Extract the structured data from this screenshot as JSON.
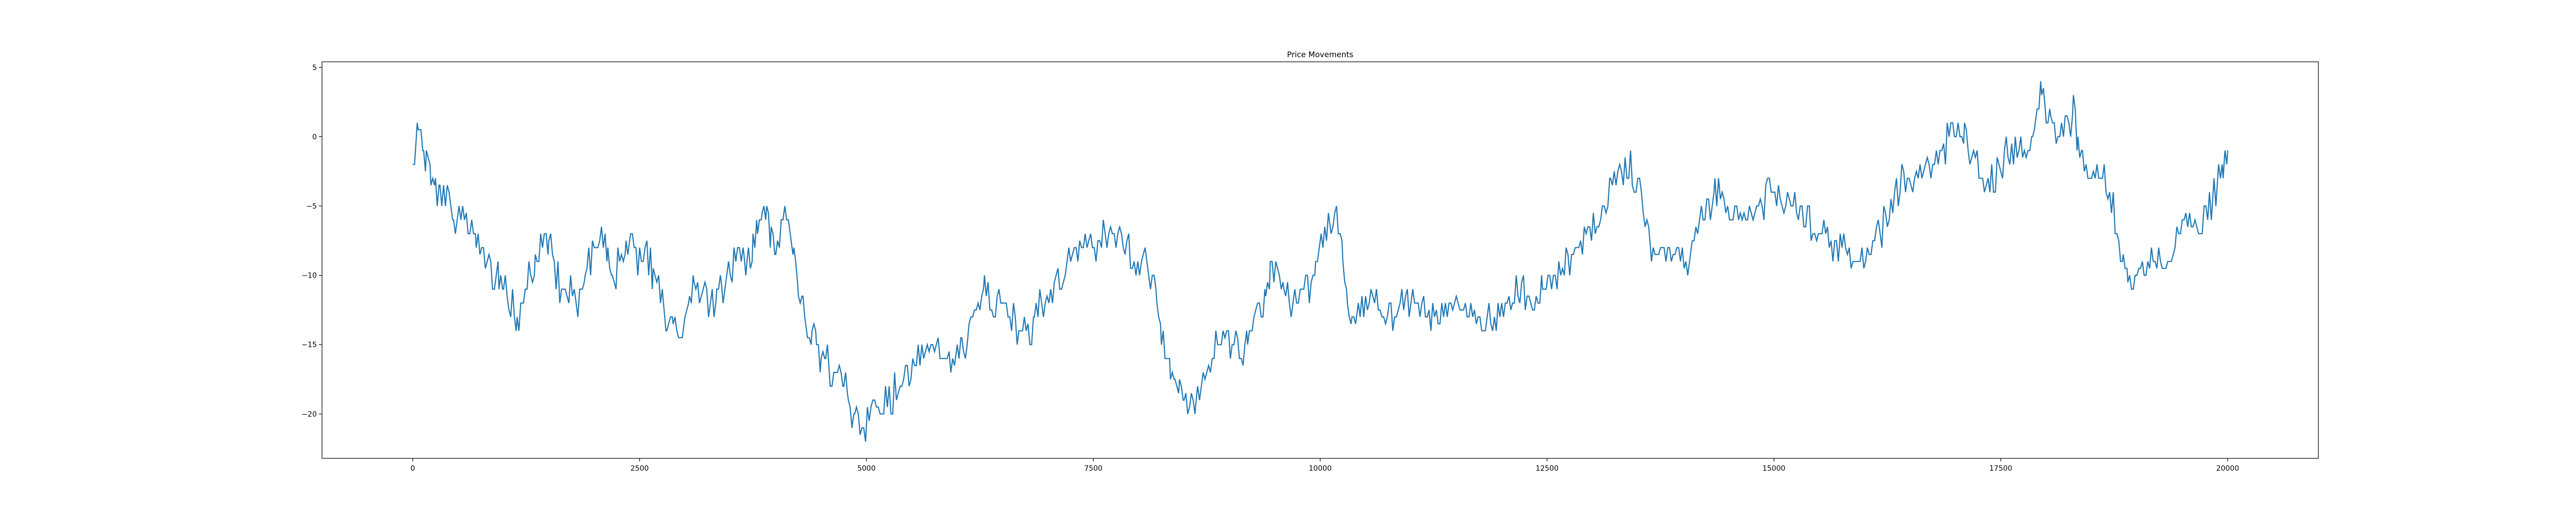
{
  "chart_data": {
    "type": "line",
    "title": "Price Movements",
    "xlabel": "",
    "ylabel": "",
    "xlim": [
      -1000,
      21000
    ],
    "ylim": [
      -23.2,
      5.4
    ],
    "x_ticks": [
      0,
      2500,
      5000,
      7500,
      10000,
      12500,
      15000,
      17500,
      20000
    ],
    "y_ticks": [
      5,
      0,
      -5,
      -10,
      -15,
      -20
    ],
    "grid": false,
    "series_color": "#1f77b4",
    "x_step": 20,
    "points": [
      [
        0,
        -2
      ],
      [
        30,
        0
      ],
      [
        60,
        1
      ],
      [
        90,
        0
      ],
      [
        120,
        -1
      ],
      [
        150,
        -2
      ],
      [
        200,
        -3
      ],
      [
        250,
        -4
      ],
      [
        300,
        -4
      ],
      [
        400,
        -4
      ],
      [
        450,
        -6
      ],
      [
        550,
        -6
      ],
      [
        650,
        -6
      ],
      [
        700,
        -7
      ],
      [
        760,
        -8
      ],
      [
        820,
        -9
      ],
      [
        900,
        -10
      ],
      [
        950,
        -10
      ],
      [
        1000,
        -11
      ],
      [
        1080,
        -12
      ],
      [
        1150,
        -13
      ],
      [
        1200,
        -12
      ],
      [
        1300,
        -10
      ],
      [
        1350,
        -9
      ],
      [
        1450,
        -8
      ],
      [
        1500,
        -8
      ],
      [
        1560,
        -9
      ],
      [
        1620,
        -11
      ],
      [
        1700,
        -11
      ],
      [
        1800,
        -12
      ],
      [
        1850,
        -11
      ],
      [
        1900,
        -10
      ],
      [
        2000,
        -8
      ],
      [
        2100,
        -7
      ],
      [
        2150,
        -8
      ],
      [
        2200,
        -10
      ],
      [
        2300,
        -9
      ],
      [
        2350,
        -8
      ],
      [
        2400,
        -8
      ],
      [
        2500,
        -9
      ],
      [
        2580,
        -8
      ],
      [
        2650,
        -10
      ],
      [
        2750,
        -11
      ],
      [
        2800,
        -13
      ],
      [
        2870,
        -14
      ],
      [
        2950,
        -14
      ],
      [
        3000,
        -13
      ],
      [
        3050,
        -12
      ],
      [
        3100,
        -11
      ],
      [
        3200,
        -11
      ],
      [
        3300,
        -12
      ],
      [
        3350,
        -12
      ],
      [
        3400,
        -11
      ],
      [
        3500,
        -10
      ],
      [
        3580,
        -9
      ],
      [
        3650,
        -9
      ],
      [
        3700,
        -9
      ],
      [
        3750,
        -8
      ],
      [
        3800,
        -6
      ],
      [
        3850,
        -5
      ],
      [
        3900,
        -6
      ],
      [
        3950,
        -7
      ],
      [
        4000,
        -8
      ],
      [
        4060,
        -7
      ],
      [
        4100,
        -6
      ],
      [
        4150,
        -7
      ],
      [
        4200,
        -9
      ],
      [
        4250,
        -11
      ],
      [
        4300,
        -12
      ],
      [
        4350,
        -14
      ],
      [
        4400,
        -14
      ],
      [
        4450,
        -15
      ],
      [
        4500,
        -16
      ],
      [
        4550,
        -16
      ],
      [
        4600,
        -17
      ],
      [
        4700,
        -17
      ],
      [
        4750,
        -18
      ],
      [
        4800,
        -19
      ],
      [
        4870,
        -20
      ],
      [
        4950,
        -21
      ],
      [
        5050,
        -20
      ],
      [
        5150,
        -20
      ],
      [
        5250,
        -19
      ],
      [
        5350,
        -18
      ],
      [
        5450,
        -17
      ],
      [
        5550,
        -16
      ],
      [
        5650,
        -15
      ],
      [
        5750,
        -15
      ],
      [
        5850,
        -16
      ],
      [
        6000,
        -16
      ],
      [
        6050,
        -15
      ],
      [
        6150,
        -14
      ],
      [
        6250,
        -12
      ],
      [
        6300,
        -11
      ],
      [
        6400,
        -12
      ],
      [
        6500,
        -12
      ],
      [
        6600,
        -13
      ],
      [
        6700,
        -14
      ],
      [
        6800,
        -14
      ],
      [
        6850,
        -13
      ],
      [
        6950,
        -12
      ],
      [
        7050,
        -11
      ],
      [
        7150,
        -10
      ],
      [
        7250,
        -9
      ],
      [
        7350,
        -8
      ],
      [
        7450,
        -8
      ],
      [
        7550,
        -8
      ],
      [
        7650,
        -7
      ],
      [
        7750,
        -7
      ],
      [
        7850,
        -8
      ],
      [
        7950,
        -9
      ],
      [
        8050,
        -9
      ],
      [
        8150,
        -10
      ],
      [
        8200,
        -12
      ],
      [
        8250,
        -14
      ],
      [
        8300,
        -16
      ],
      [
        8350,
        -17
      ],
      [
        8400,
        -17
      ],
      [
        8450,
        -18
      ],
      [
        8500,
        -19
      ],
      [
        8600,
        -19
      ],
      [
        8650,
        -18
      ],
      [
        8750,
        -17
      ],
      [
        8850,
        -15
      ],
      [
        8950,
        -14
      ],
      [
        9050,
        -15
      ],
      [
        9150,
        -16
      ],
      [
        9200,
        -14
      ],
      [
        9250,
        -13
      ],
      [
        9350,
        -12
      ],
      [
        9400,
        -11
      ],
      [
        9450,
        -10
      ],
      [
        9550,
        -10
      ],
      [
        9600,
        -11
      ],
      [
        9700,
        -12
      ],
      [
        9800,
        -11
      ],
      [
        9900,
        -11
      ],
      [
        9950,
        -9
      ],
      [
        10050,
        -7
      ],
      [
        10100,
        -6
      ],
      [
        10200,
        -6
      ],
      [
        10250,
        -9
      ],
      [
        10300,
        -12
      ],
      [
        10350,
        -13
      ],
      [
        10400,
        -13
      ],
      [
        10500,
        -12
      ],
      [
        10600,
        -12
      ],
      [
        10700,
        -13
      ],
      [
        10800,
        -13
      ],
      [
        10900,
        -12
      ],
      [
        11000,
        -12
      ],
      [
        11100,
        -12
      ],
      [
        11200,
        -13
      ],
      [
        11300,
        -13
      ],
      [
        11400,
        -12
      ],
      [
        11500,
        -12
      ],
      [
        11600,
        -13
      ],
      [
        11700,
        -13
      ],
      [
        11800,
        -14
      ],
      [
        11900,
        -13
      ],
      [
        12000,
        -13
      ],
      [
        12100,
        -12
      ],
      [
        12200,
        -11
      ],
      [
        12300,
        -12
      ],
      [
        12400,
        -12
      ],
      [
        12450,
        -11
      ],
      [
        12550,
        -10
      ],
      [
        12650,
        -10
      ],
      [
        12750,
        -9
      ],
      [
        12850,
        -8
      ],
      [
        12950,
        -7
      ],
      [
        13050,
        -6
      ],
      [
        13150,
        -5
      ],
      [
        13200,
        -3
      ],
      [
        13300,
        -3
      ],
      [
        13400,
        -2
      ],
      [
        13500,
        -4
      ],
      [
        13600,
        -6
      ],
      [
        13650,
        -8
      ],
      [
        13750,
        -8
      ],
      [
        13850,
        -8
      ],
      [
        13950,
        -9
      ],
      [
        14050,
        -9
      ],
      [
        14100,
        -8
      ],
      [
        14200,
        -6
      ],
      [
        14300,
        -5
      ],
      [
        14350,
        -4
      ],
      [
        14450,
        -5
      ],
      [
        14550,
        -6
      ],
      [
        14650,
        -6
      ],
      [
        14750,
        -6
      ],
      [
        14850,
        -5
      ],
      [
        14950,
        -4
      ],
      [
        15050,
        -4
      ],
      [
        15150,
        -5
      ],
      [
        15250,
        -5
      ],
      [
        15350,
        -6
      ],
      [
        15450,
        -7
      ],
      [
        15550,
        -7
      ],
      [
        15650,
        -8
      ],
      [
        15750,
        -8
      ],
      [
        15850,
        -9
      ],
      [
        15950,
        -9
      ],
      [
        16050,
        -8
      ],
      [
        16150,
        -7
      ],
      [
        16250,
        -6
      ],
      [
        16350,
        -4
      ],
      [
        16450,
        -3
      ],
      [
        16550,
        -3
      ],
      [
        16650,
        -2
      ],
      [
        16750,
        -2
      ],
      [
        16850,
        -1
      ],
      [
        16950,
        0
      ],
      [
        17100,
        0
      ],
      [
        17200,
        -1
      ],
      [
        17300,
        -3
      ],
      [
        17400,
        -3
      ],
      [
        17500,
        -2
      ],
      [
        17600,
        -1
      ],
      [
        17700,
        -1
      ],
      [
        17800,
        -1
      ],
      [
        17850,
        0
      ],
      [
        17900,
        2
      ],
      [
        17950,
        3
      ],
      [
        18000,
        2
      ],
      [
        18050,
        1
      ],
      [
        18150,
        0
      ],
      [
        18250,
        1
      ],
      [
        18300,
        2
      ],
      [
        18350,
        0
      ],
      [
        18400,
        -2
      ],
      [
        18500,
        -3
      ],
      [
        18600,
        -3
      ],
      [
        18700,
        -4
      ],
      [
        18800,
        -7
      ],
      [
        18850,
        -9
      ],
      [
        18900,
        -10
      ],
      [
        19000,
        -10
      ],
      [
        19100,
        -10
      ],
      [
        19200,
        -9
      ],
      [
        19300,
        -10
      ],
      [
        19400,
        -8
      ],
      [
        19500,
        -6
      ],
      [
        19600,
        -6
      ],
      [
        19700,
        -6
      ],
      [
        19800,
        -5
      ],
      [
        19850,
        -4
      ],
      [
        19900,
        -3
      ],
      [
        19950,
        -2
      ],
      [
        20000,
        -1
      ]
    ]
  }
}
